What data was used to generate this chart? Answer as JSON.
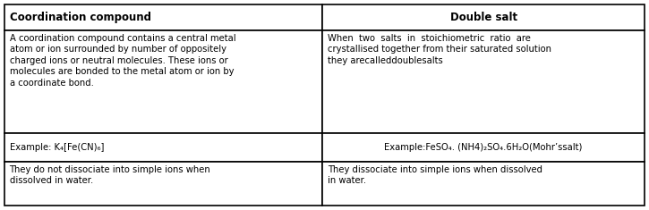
{
  "fig_width": 7.25,
  "fig_height": 2.35,
  "dpi": 100,
  "background_color": "#ffffff",
  "border_color": "#000000",
  "col_split": 0.497,
  "headers": [
    "Coordination compound",
    "Double salt"
  ],
  "header_fontsize": 8.5,
  "body_fontsize": 7.2,
  "rows_left": [
    "A coordination compound contains a central metal\natom or ion surrounded by number of oppositely\ncharged ions or neutral molecules. These ions or\nmolecules are bonded to the metal atom or ion by\na coordinate bond.",
    "Example: K₄[Fe(CN)₆]",
    "They do not dissociate into simple ions when\ndissolved in water."
  ],
  "rows_right": [
    "When  two  salts  in  stoichiometric  ratio  are\ncrystallised together from their saturated solution\nthey arecalleddoublesalts",
    "Example:FeSO₄. (NH4)₂SO₄.6H₂O(Mohr’ssalt)",
    "They dissociate into simple ions when dissolved\nin water."
  ],
  "row_valign": [
    "top",
    "center",
    "top"
  ],
  "right_halign": [
    "left",
    "center",
    "left"
  ],
  "lw": 1.2
}
